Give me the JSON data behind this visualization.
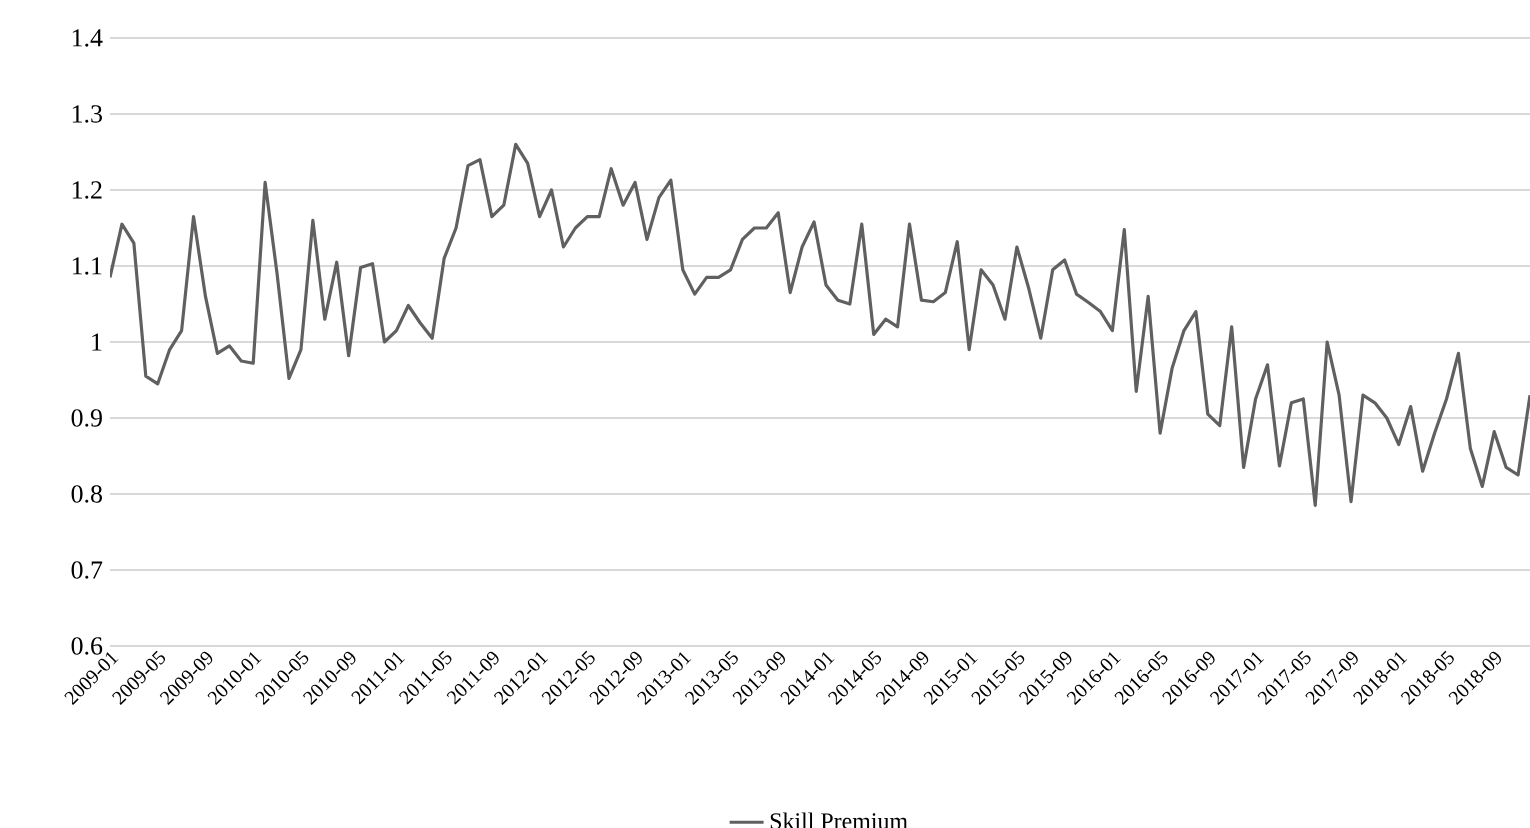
{
  "chart_data": {
    "type": "line",
    "categories": [
      "2009-01",
      null,
      null,
      null,
      "2009-05",
      null,
      null,
      null,
      "2009-09",
      null,
      null,
      null,
      "2010-01",
      null,
      null,
      null,
      "2010-05",
      null,
      null,
      null,
      "2010-09",
      null,
      null,
      null,
      "2011-01",
      null,
      null,
      null,
      "2011-05",
      null,
      null,
      null,
      "2011-09",
      null,
      null,
      null,
      "2012-01",
      null,
      null,
      null,
      "2012-05",
      null,
      null,
      null,
      "2012-09",
      null,
      null,
      null,
      "2013-01",
      null,
      null,
      null,
      "2013-05",
      null,
      null,
      null,
      "2013-09",
      null,
      null,
      null,
      "2014-01",
      null,
      null,
      null,
      "2014-05",
      null,
      null,
      null,
      "2014-09",
      null,
      null,
      null,
      "2015-01",
      null,
      null,
      null,
      "2015-05",
      null,
      null,
      null,
      "2015-09",
      null,
      null,
      null,
      "2016-01",
      null,
      null,
      null,
      "2016-05",
      null,
      null,
      null,
      "2016-09",
      null,
      null,
      null,
      "2017-01",
      null,
      null,
      null,
      "2017-05",
      null,
      null,
      null,
      "2017-09",
      null,
      null,
      null,
      "2018-01",
      null,
      null,
      null,
      "2018-05",
      null,
      null,
      null,
      "2018-09",
      null,
      null,
      null
    ],
    "series": [
      {
        "name": "Skill Premium",
        "color": "#606060",
        "values": [
          1.085,
          1.155,
          1.13,
          0.955,
          0.945,
          0.99,
          1.015,
          1.165,
          1.06,
          0.985,
          0.995,
          0.975,
          0.972,
          1.21,
          1.09,
          0.952,
          0.99,
          1.16,
          1.03,
          1.105,
          0.982,
          1.098,
          1.103,
          1.0,
          1.015,
          1.048,
          1.025,
          1.005,
          1.11,
          1.15,
          1.232,
          1.24,
          1.165,
          1.18,
          1.26,
          1.235,
          1.165,
          1.2,
          1.125,
          1.15,
          1.165,
          1.165,
          1.228,
          1.18,
          1.21,
          1.135,
          1.19,
          1.213,
          1.095,
          1.063,
          1.085,
          1.085,
          1.095,
          1.135,
          1.15,
          1.15,
          1.17,
          1.065,
          1.125,
          1.158,
          1.075,
          1.055,
          1.05,
          1.155,
          1.01,
          1.03,
          1.02,
          1.155,
          1.055,
          1.053,
          1.065,
          1.132,
          0.99,
          1.095,
          1.075,
          1.03,
          1.125,
          1.07,
          1.005,
          1.095,
          1.108,
          1.063,
          1.052,
          1.04,
          1.015,
          1.148,
          0.935,
          1.06,
          0.88,
          0.965,
          1.015,
          1.04,
          0.905,
          0.89,
          1.02,
          0.835,
          0.925,
          0.97,
          0.837,
          0.92,
          0.925,
          0.785,
          1.0,
          0.93,
          0.79,
          0.93,
          0.92,
          0.9,
          0.865,
          0.915,
          0.83,
          0.88,
          0.925,
          0.985,
          0.86,
          0.81,
          0.882,
          0.835,
          0.825,
          0.93
        ]
      }
    ],
    "ylim": [
      0.6,
      1.4
    ],
    "yticks": [
      0.6,
      0.7,
      0.8,
      0.9,
      1,
      1.1,
      1.2,
      1.3,
      1.4
    ],
    "grid": "y",
    "legend": "bottom"
  }
}
